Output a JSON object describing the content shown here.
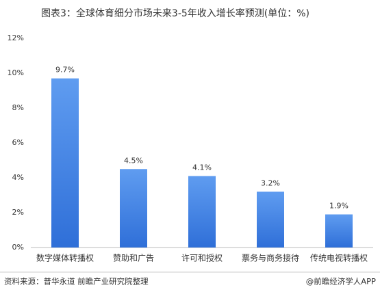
{
  "chart_data": {
    "type": "bar",
    "title": "图表3：全球体育细分市场未来3-5年收入增长率预测(单位：%)",
    "categories": [
      "数字媒体转播权",
      "赞助和广告",
      "许可和授权",
      "票务与商务接待",
      "传统电视转播权"
    ],
    "values": [
      9.7,
      4.5,
      4.1,
      3.2,
      1.9
    ],
    "value_labels": [
      "9.7%",
      "4.5%",
      "4.1%",
      "3.2%",
      "1.9%"
    ],
    "color": "#3d82e3",
    "ylim": [
      0,
      12
    ],
    "yticks": [
      {
        "value": 0,
        "label": "0%"
      },
      {
        "value": 2,
        "label": "2%"
      },
      {
        "value": 4,
        "label": "4%"
      },
      {
        "value": 6,
        "label": "6%"
      },
      {
        "value": 8,
        "label": "8%"
      },
      {
        "value": 10,
        "label": "10%"
      },
      {
        "value": 12,
        "label": "12%"
      }
    ],
    "grid": false,
    "source": "资料来源：普华永道 前瞻产业研究院整理",
    "credit": "@前瞻经济学人APP"
  }
}
